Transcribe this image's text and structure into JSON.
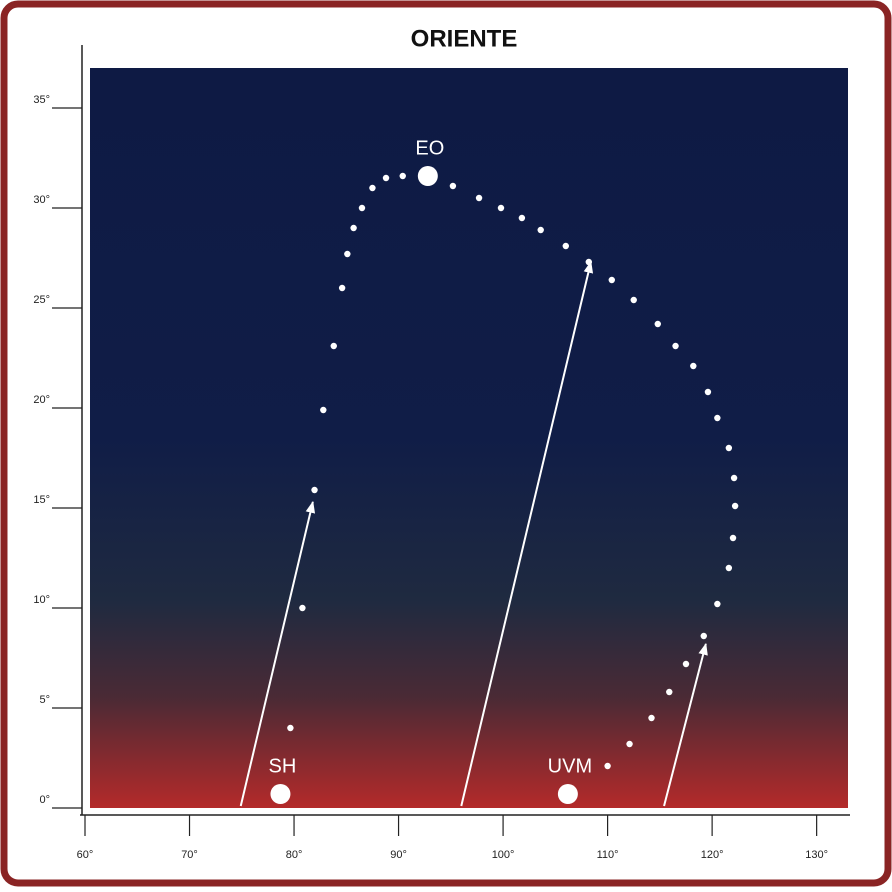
{
  "chart_data": {
    "type": "scatter",
    "title": "ORIENTE",
    "xlim": [
      60,
      133
    ],
    "ylim": [
      0,
      37
    ],
    "xticks": [
      {
        "value": 60,
        "label": "60°"
      },
      {
        "value": 70,
        "label": "70°"
      },
      {
        "value": 80,
        "label": "80°"
      },
      {
        "value": 90,
        "label": "90°"
      },
      {
        "value": 100,
        "label": "100°"
      },
      {
        "value": 110,
        "label": "110°"
      },
      {
        "value": 120,
        "label": "120°"
      },
      {
        "value": 130,
        "label": "130°"
      }
    ],
    "yticks": [
      {
        "value": 0,
        "label": "0°"
      },
      {
        "value": 5,
        "label": "5°"
      },
      {
        "value": 10,
        "label": "10°"
      },
      {
        "value": 15,
        "label": "15°"
      },
      {
        "value": 20,
        "label": "20°"
      },
      {
        "value": 25,
        "label": "25°"
      },
      {
        "value": 30,
        "label": "30°"
      },
      {
        "value": 35,
        "label": "35°"
      }
    ],
    "color": "#ffffff",
    "x": [
      79.65,
      80.8,
      81.96,
      82.8,
      83.8,
      84.6,
      85.1,
      85.7,
      86.5,
      87.5,
      88.8,
      90.4,
      95.2,
      97.7,
      99.8,
      101.8,
      103.6,
      106.0,
      108.2,
      110.4,
      112.5,
      114.8,
      116.5,
      118.2,
      119.6,
      120.5,
      121.6,
      122.1,
      122.2,
      122.0,
      121.6,
      120.5,
      119.2,
      117.5,
      115.9,
      114.2,
      112.1,
      110.0
    ],
    "values": [
      4.0,
      10.0,
      15.9,
      19.9,
      23.1,
      26.0,
      27.7,
      29.0,
      30.0,
      31.0,
      31.5,
      31.6,
      31.1,
      30.5,
      30.0,
      29.5,
      28.9,
      28.1,
      27.3,
      26.4,
      25.4,
      24.2,
      23.1,
      22.1,
      20.8,
      19.5,
      18.0,
      16.5,
      15.1,
      13.5,
      12.0,
      10.2,
      8.6,
      7.2,
      5.8,
      4.5,
      3.2,
      2.1
    ],
    "highlights": [
      {
        "label": "EO",
        "x": 92.8,
        "y": 31.6
      },
      {
        "label": "SH",
        "x": 78.7,
        "y": 0.7
      },
      {
        "label": "UVM",
        "x": 106.2,
        "y": 0.7
      }
    ],
    "arrows": [
      {
        "x": [
          74.9,
          81.8
        ],
        "y": [
          0.1,
          15.3
        ]
      },
      {
        "x": [
          96.0,
          108.4
        ],
        "y": [
          0.1,
          27.3
        ]
      },
      {
        "x": [
          115.4,
          119.4
        ],
        "y": [
          0.1,
          8.2
        ]
      }
    ]
  }
}
